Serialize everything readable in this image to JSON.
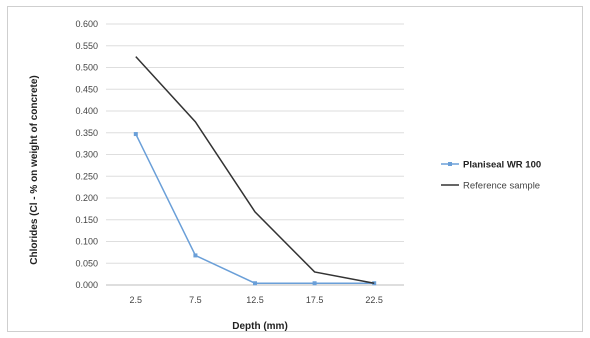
{
  "chart_data": {
    "type": "line",
    "categories": [
      "2.5",
      "7.5",
      "12.5",
      "17.5",
      "22.5"
    ],
    "xlabel": "Depth (mm)",
    "ylabel": "Chlorides (Cl - % on weight of concrete)",
    "ylim": [
      0,
      0.6
    ],
    "yticks": [
      "0.000",
      "0.050",
      "0.100",
      "0.150",
      "0.200",
      "0.250",
      "0.300",
      "0.350",
      "0.400",
      "0.450",
      "0.500",
      "0.550",
      "0.600"
    ],
    "grid": true,
    "legend_position": "right",
    "series": [
      {
        "name": "Planiseal WR 100",
        "values": [
          0.347,
          0.068,
          0.004,
          0.004,
          0.004
        ],
        "color": "#6a9fd8",
        "marker": "square"
      },
      {
        "name": "Reference sample",
        "values": [
          0.525,
          0.375,
          0.168,
          0.03,
          0.004
        ],
        "color": "#333333",
        "marker": "none"
      }
    ]
  }
}
